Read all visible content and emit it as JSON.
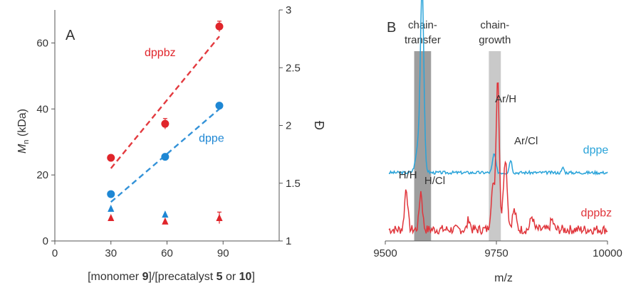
{
  "chart_data": [
    {
      "type": "scatter",
      "panel_label": "A",
      "xlabel_parts": [
        {
          "text": "[monomer ",
          "bold": false
        },
        {
          "text": "9",
          "bold": true
        },
        {
          "text": "]/[precatalyst ",
          "bold": false
        },
        {
          "text": "5",
          "bold": true
        },
        {
          "text": " or ",
          "bold": false
        },
        {
          "text": "10",
          "bold": true
        },
        {
          "text": "]",
          "bold": false
        }
      ],
      "ylabel_main": "M",
      "ylabel_sub": "n",
      "ylabel_rest": " (kDa)",
      "y2label": "Đ",
      "xlim": [
        0,
        120
      ],
      "ylim": [
        0,
        70
      ],
      "y2lim": [
        1,
        3
      ],
      "xticks": [
        0,
        30,
        60,
        90
      ],
      "xtick_labels": [
        "0",
        "30",
        "60",
        "90"
      ],
      "yticks": [
        0,
        20,
        40,
        60
      ],
      "ytick_labels": [
        "0",
        "20",
        "40",
        "60"
      ],
      "y2ticks": [
        1,
        1.5,
        2,
        2.5,
        3
      ],
      "y2tick_labels": [
        "1",
        "1.5",
        "2",
        "2.5",
        "3"
      ],
      "grid": false,
      "series": [
        {
          "name": "dppbz",
          "color": "#e0252b",
          "marker": "circle",
          "axis": "left",
          "x": [
            30,
            59,
            88
          ],
          "y": [
            25.2,
            35.5,
            65
          ],
          "yerr": [
            0.8,
            1.6,
            1.6
          ],
          "fit": {
            "x": [
              30,
              88
            ],
            "y": [
              22,
              62
            ]
          }
        },
        {
          "name": "dppe",
          "color": "#1e87d4",
          "marker": "circle",
          "axis": "left",
          "x": [
            30,
            59,
            88
          ],
          "y": [
            14.2,
            25.5,
            41
          ],
          "yerr": [
            0.5,
            0.5,
            0.5
          ],
          "fit": {
            "x": [
              30,
              88
            ],
            "y": [
              11.8,
              40
            ]
          }
        },
        {
          "name": "",
          "color": "#1e87d4",
          "marker": "triangle",
          "axis": "right",
          "x": [
            30,
            59
          ],
          "y": [
            1.28,
            1.23
          ],
          "yerr": [
            0,
            0
          ]
        },
        {
          "name": "",
          "color": "#e0252b",
          "marker": "triangle",
          "axis": "right",
          "x": [
            30,
            59,
            88
          ],
          "y": [
            1.2,
            1.17,
            1.2
          ],
          "yerr": [
            0,
            0,
            0.05
          ]
        }
      ],
      "annotations": [
        {
          "text": "dppbz",
          "color": "#e0252b",
          "x": 48,
          "y": 56
        },
        {
          "text": "dppe",
          "color": "#1e87d4",
          "x": 77,
          "y": 30
        }
      ]
    },
    {
      "type": "line",
      "panel_label": "B",
      "xlabel": "m/z",
      "xlim": [
        9500,
        10000
      ],
      "xticks": [
        9500,
        9750,
        10000
      ],
      "xtick_labels": [
        "9500",
        "9750",
        "10000"
      ],
      "grid": false,
      "bands": [
        {
          "x0": 9565,
          "x1": 9603,
          "color": "#9e9e9e",
          "label_lines": [
            "chain-",
            "transfer"
          ]
        },
        {
          "x0": 9733,
          "x1": 9760,
          "color": "#c9c9c9",
          "label_lines": [
            "chain-",
            "growth"
          ]
        }
      ],
      "series": [
        {
          "name": "dppe",
          "color": "#29a3d9",
          "baseline": 0.36,
          "noise": 0.008,
          "seed": 3,
          "peaks": [
            [
              9583,
              0.85,
              5
            ],
            [
              9578,
              0.2,
              10
            ],
            [
              9745,
              0.1,
              5
            ],
            [
              9782,
              0.07,
              4
            ],
            [
              9900,
              0.03,
              3
            ]
          ]
        },
        {
          "name": "dppbz",
          "color": "#e0353b",
          "baseline": 0.06,
          "noise": 0.025,
          "seed": 7,
          "peaks": [
            [
              9547,
              0.22,
              5
            ],
            [
              9580,
              0.2,
              5
            ],
            [
              9753,
              0.8,
              5
            ],
            [
              9770,
              0.38,
              6
            ],
            [
              9742,
              0.22,
              6
            ],
            [
              9688,
              0.06,
              4
            ],
            [
              9790,
              0.1,
              6
            ],
            [
              9830,
              0.07,
              5
            ],
            [
              9875,
              0.05,
              5
            ]
          ]
        }
      ],
      "annotations": [
        {
          "text": "dppe",
          "color": "#29a3d9",
          "x": 9945,
          "y": 0.46
        },
        {
          "text": "dppbz",
          "color": "#e0353b",
          "x": 9940,
          "y": 0.13
        },
        {
          "text": "H/H",
          "color": "#333333",
          "x": 9530,
          "y": 0.33
        },
        {
          "text": "H/Cl",
          "color": "#333333",
          "x": 9588,
          "y": 0.3
        },
        {
          "text": "Ar/H",
          "color": "#333333",
          "x": 9747,
          "y": 0.73
        },
        {
          "text": "Ar/Cl",
          "color": "#333333",
          "x": 9790,
          "y": 0.51
        }
      ]
    }
  ]
}
